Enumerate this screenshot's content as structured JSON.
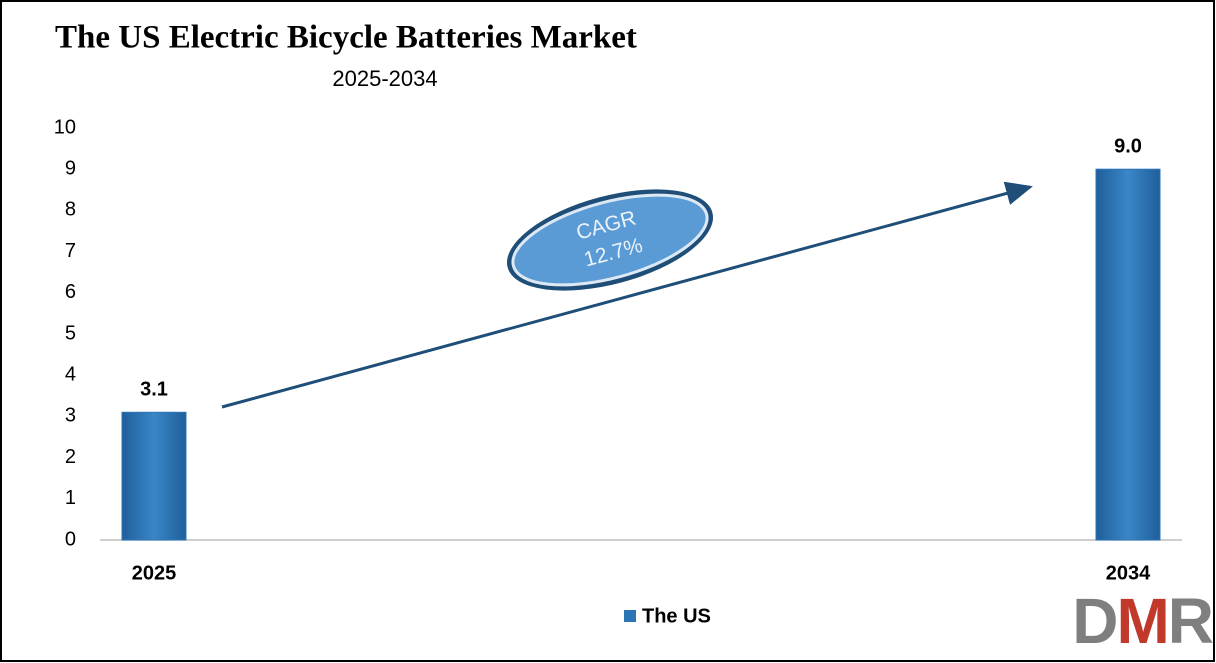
{
  "chart_data": {
    "type": "bar",
    "title": "The US Electric Bicycle Batteries Market",
    "subtitle": "2025-2034",
    "categories": [
      "2025",
      "2034"
    ],
    "series": [
      {
        "name": "The US",
        "color": "#2e75b6",
        "values": [
          3.1,
          9.0
        ],
        "value_labels": [
          "3.1",
          "9.0"
        ]
      }
    ],
    "ylim": [
      0,
      10
    ],
    "yticks": [
      0,
      1,
      2,
      3,
      4,
      5,
      6,
      7,
      8,
      9,
      10
    ],
    "grid": false,
    "annotations": [
      "CAGR",
      "12.7%"
    ],
    "legend": "bottom",
    "logo": "DMR"
  }
}
